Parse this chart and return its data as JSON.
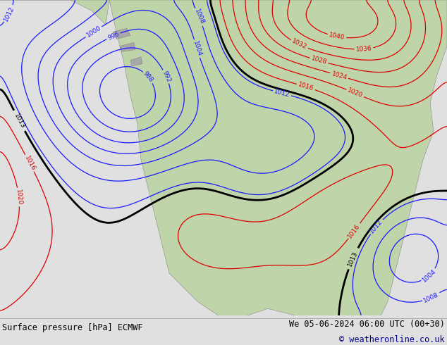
{
  "title_left": "Surface pressure [hPa] ECMWF",
  "title_right": "We 05-06-2024 06:00 UTC (00+30)",
  "copyright": "© weatheronline.co.uk",
  "bg_color": "#e0e0e0",
  "ocean_color": "#d4d4d8",
  "land_color": "#c0d4aa",
  "land_gray": "#b0b0b0",
  "contour_blue": "#1a1aff",
  "contour_red": "#dd0000",
  "contour_black": "#000000",
  "footer_fontsize": 8.5,
  "footer_color": "#000000",
  "copyright_color": "#00008b",
  "fig_width": 6.34,
  "fig_height": 4.9,
  "dpi": 100
}
